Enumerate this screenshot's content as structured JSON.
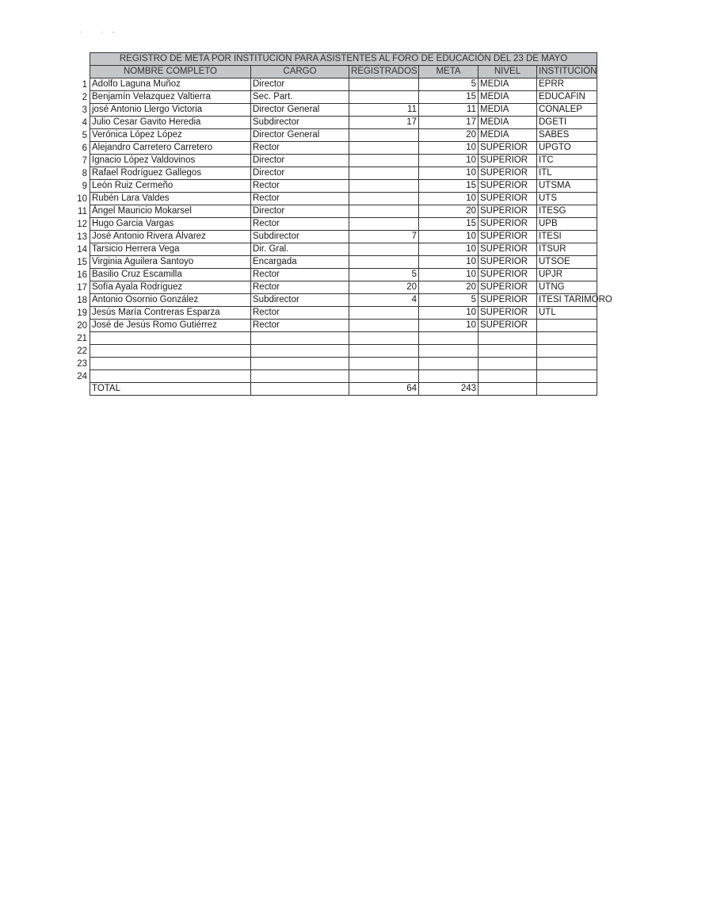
{
  "title": "REGISTRO DE META POR INSTITUCION PARA ASISTENTES AL FORO DE EDUCACIÓN DEL 23 DE MAYO",
  "headers": [
    "NOMBRE COMPLETO",
    "CARGO",
    "REGISTRADOS",
    "META",
    "NIVEL",
    "INSTITUCIÓN"
  ],
  "rows": [
    {
      "n": "1",
      "nombre": "Adolfo Laguna Muñoz",
      "cargo": "Director",
      "registrados": "",
      "meta": "5",
      "nivel": "MEDIA",
      "institucion": "EPRR"
    },
    {
      "n": "2",
      "nombre": "Benjamín Velazquez Valtierra",
      "cargo": "Sec. Part.",
      "registrados": "",
      "meta": "15",
      "nivel": "MEDIA",
      "institucion": "EDUCAFIN"
    },
    {
      "n": "3",
      "nombre": "josé Antonio Llergo Victoria",
      "cargo": "Director General",
      "registrados": "11",
      "meta": "11",
      "nivel": "MEDIA",
      "institucion": "CONALEP"
    },
    {
      "n": "4",
      "nombre": "Julio Cesar Gavito Heredia",
      "cargo": "Subdirector",
      "registrados": "17",
      "meta": "17",
      "nivel": "MEDIA",
      "institucion": "DGETI"
    },
    {
      "n": "5",
      "nombre": "Verónica López López",
      "cargo": "Director General",
      "registrados": "",
      "meta": "20",
      "nivel": "MEDIA",
      "institucion": "SABES"
    },
    {
      "n": "6",
      "nombre": "Alejandro Carretero Carretero",
      "cargo": "Rector",
      "registrados": "",
      "meta": "10",
      "nivel": "SUPERIOR",
      "institucion": "UPGTO"
    },
    {
      "n": "7",
      "nombre": "Ignacio López Valdovinos",
      "cargo": "Director",
      "registrados": "",
      "meta": "10",
      "nivel": "SUPERIOR",
      "institucion": "ITC"
    },
    {
      "n": "8",
      "nombre": "Rafael Rodríguez Gallegos",
      "cargo": "Director",
      "registrados": "",
      "meta": "10",
      "nivel": "SUPERIOR",
      "institucion": "ITL"
    },
    {
      "n": "9",
      "nombre": "León Ruiz Cermeño",
      "cargo": "Rector",
      "registrados": "",
      "meta": "15",
      "nivel": "SUPERIOR",
      "institucion": "UTSMA"
    },
    {
      "n": "10",
      "nombre": "Rubén Lara Valdes",
      "cargo": "Rector",
      "registrados": "",
      "meta": "10",
      "nivel": "SUPERIOR",
      "institucion": "UTS"
    },
    {
      "n": "11",
      "nombre": "Ángel Mauricio Mokarsel",
      "cargo": "Director",
      "registrados": "",
      "meta": "20",
      "nivel": "SUPERIOR",
      "institucion": "ITESG"
    },
    {
      "n": "12",
      "nombre": "Hugo Garcia Vargas",
      "cargo": "Rector",
      "registrados": "",
      "meta": "15",
      "nivel": "SUPERIOR",
      "institucion": "UPB"
    },
    {
      "n": "13",
      "nombre": "José Antonio Rivera Álvarez",
      "cargo": "Subdirector",
      "registrados": "7",
      "meta": "10",
      "nivel": "SUPERIOR",
      "institucion": "ITESI"
    },
    {
      "n": "14",
      "nombre": "Tarsicio Herrera Vega",
      "cargo": "Dir. Gral.",
      "registrados": "",
      "meta": "10",
      "nivel": "SUPERIOR",
      "institucion": "ITSUR"
    },
    {
      "n": "15",
      "nombre": "Virginia Aguilera Santoyo",
      "cargo": "Encargada",
      "registrados": "",
      "meta": "10",
      "nivel": "SUPERIOR",
      "institucion": "UTSOE"
    },
    {
      "n": "16",
      "nombre": "Basilio Cruz Escamilla",
      "cargo": "Rector",
      "registrados": "5",
      "meta": "10",
      "nivel": "SUPERIOR",
      "institucion": "UPJR"
    },
    {
      "n": "17",
      "nombre": "Sofía Ayala Rodríguez",
      "cargo": "Rector",
      "registrados": "20",
      "meta": "20",
      "nivel": "SUPERIOR",
      "institucion": "UTNG"
    },
    {
      "n": "18",
      "nombre": "Antonio Osornio González",
      "cargo": "Subdirector",
      "registrados": "4",
      "meta": "5",
      "nivel": "SUPERIOR",
      "institucion": "ITESI TARIMORO"
    },
    {
      "n": "19",
      "nombre": "Jesús María Contreras Esparza",
      "cargo": "Rector",
      "registrados": "",
      "meta": "10",
      "nivel": "SUPERIOR",
      "institucion": "UTL"
    },
    {
      "n": "20",
      "nombre": "José de Jesús Romo Gutiérrez",
      "cargo": "Rector",
      "registrados": "",
      "meta": "10",
      "nivel": "SUPERIOR",
      "institucion": ""
    },
    {
      "n": "21",
      "nombre": "",
      "cargo": "",
      "registrados": "",
      "meta": "",
      "nivel": "",
      "institucion": ""
    },
    {
      "n": "22",
      "nombre": "",
      "cargo": "",
      "registrados": "",
      "meta": "",
      "nivel": "",
      "institucion": ""
    },
    {
      "n": "23",
      "nombre": "",
      "cargo": "",
      "registrados": "",
      "meta": "",
      "nivel": "",
      "institucion": ""
    },
    {
      "n": "24",
      "nombre": "",
      "cargo": "",
      "registrados": "",
      "meta": "",
      "nivel": "",
      "institucion": ""
    }
  ],
  "total": {
    "label": "TOTAL",
    "registrados": "64",
    "meta": "243"
  }
}
